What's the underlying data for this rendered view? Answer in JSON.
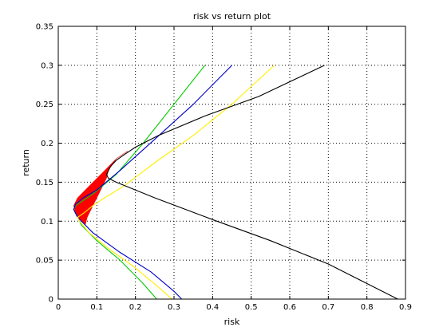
{
  "chart_data": {
    "type": "line",
    "title": "risk vs return plot",
    "xlabel": "risk",
    "ylabel": "return",
    "xlim": [
      0,
      0.9
    ],
    "ylim": [
      0,
      0.35
    ],
    "xticks": [
      0,
      0.1,
      0.2,
      0.3,
      0.4,
      0.5,
      0.6,
      0.7,
      0.8,
      0.9
    ],
    "yticks": [
      0,
      0.05,
      0.1,
      0.15,
      0.2,
      0.25,
      0.3,
      0.35
    ],
    "xtick_labels": [
      "0",
      "0.1",
      "0.2",
      "0.3",
      "0.4",
      "0.5",
      "0.6",
      "0.7",
      "0.8",
      "0.9"
    ],
    "ytick_labels": [
      "0",
      "0.05",
      "0.1",
      "0.15",
      "0.2",
      "0.25",
      "0.3",
      "0.35"
    ],
    "grid": true,
    "grid_style": "dotted",
    "shaded_region": {
      "color": "#ff0000",
      "outer": [
        [
          0.18,
          0.19
        ],
        [
          0.15,
          0.18
        ],
        [
          0.12,
          0.165
        ],
        [
          0.09,
          0.15
        ],
        [
          0.07,
          0.14
        ],
        [
          0.05,
          0.13
        ],
        [
          0.04,
          0.12
        ],
        [
          0.045,
          0.11
        ],
        [
          0.06,
          0.1
        ],
        [
          0.07,
          0.095
        ]
      ],
      "inner": [
        [
          0.07,
          0.095
        ],
        [
          0.075,
          0.105
        ],
        [
          0.09,
          0.12
        ],
        [
          0.11,
          0.14
        ],
        [
          0.125,
          0.155
        ],
        [
          0.13,
          0.165
        ],
        [
          0.15,
          0.18
        ],
        [
          0.18,
          0.19
        ]
      ]
    },
    "series": [
      {
        "color": "#00cc00",
        "x": [
          0.38,
          0.3,
          0.22,
          0.15,
          0.09,
          0.06,
          0.045,
          0.04,
          0.045,
          0.06,
          0.1,
          0.16,
          0.22,
          0.255
        ],
        "y": [
          0.3,
          0.25,
          0.2,
          0.16,
          0.135,
          0.125,
          0.12,
          0.115,
          0.11,
          0.095,
          0.075,
          0.05,
          0.02,
          0.0
        ]
      },
      {
        "color": "#0000cc",
        "x": [
          0.45,
          0.35,
          0.25,
          0.16,
          0.1,
          0.065,
          0.045,
          0.04,
          0.05,
          0.09,
          0.16,
          0.24,
          0.3,
          0.32
        ],
        "y": [
          0.3,
          0.25,
          0.205,
          0.165,
          0.14,
          0.13,
          0.122,
          0.115,
          0.105,
          0.085,
          0.06,
          0.035,
          0.01,
          0.0
        ]
      },
      {
        "color": "#ffee00",
        "x": [
          0.56,
          0.45,
          0.35,
          0.25,
          0.17,
          0.12,
          0.09,
          0.065,
          0.05,
          0.055,
          0.08,
          0.13,
          0.2,
          0.26,
          0.295
        ],
        "y": [
          0.3,
          0.25,
          0.21,
          0.175,
          0.145,
          0.13,
          0.12,
          0.11,
          0.105,
          0.1,
          0.085,
          0.065,
          0.04,
          0.015,
          0.0
        ]
      },
      {
        "color": "#000000",
        "x": [
          0.69,
          0.52,
          0.38,
          0.26,
          0.2,
          0.17,
          0.15,
          0.135,
          0.125,
          0.13,
          0.15,
          0.25,
          0.4,
          0.55,
          0.7,
          0.88
        ],
        "y": [
          0.3,
          0.26,
          0.235,
          0.21,
          0.195,
          0.185,
          0.178,
          0.17,
          0.16,
          0.155,
          0.15,
          0.13,
          0.102,
          0.075,
          0.045,
          0.0
        ]
      }
    ]
  }
}
